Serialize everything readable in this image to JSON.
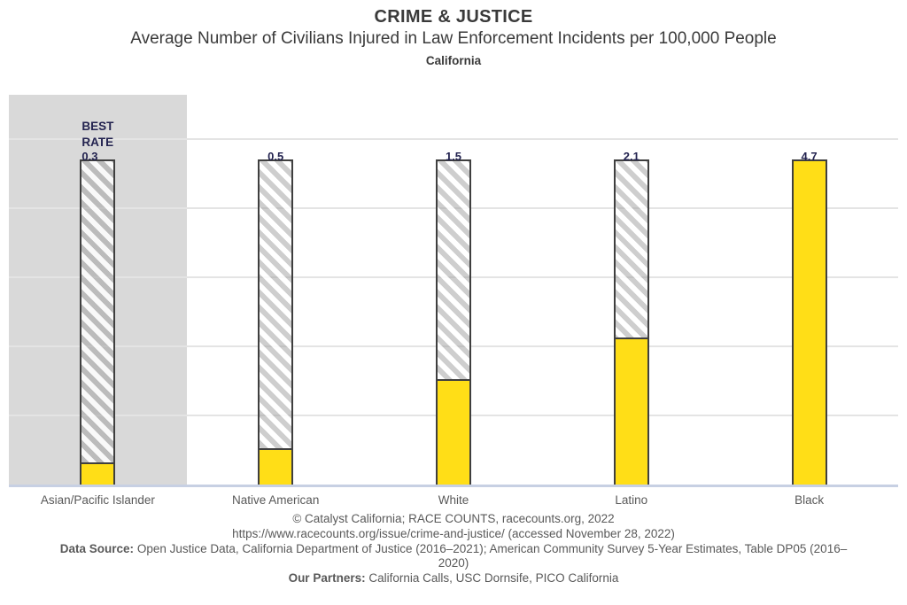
{
  "header": {
    "kicker": "CRIME & JUSTICE",
    "title": "Average Number of Civilians Injured in Law Enforcement Incidents per 100,000 People",
    "region": "California"
  },
  "chart_data": {
    "type": "bar",
    "title": "CRIME & JUSTICE",
    "subtitle": "Average Number of Civilians Injured in Law Enforcement Incidents per 100,000 People",
    "region": "California",
    "categories": [
      "Asian/Pacific Islander",
      "Native American",
      "White",
      "Latino",
      "Black"
    ],
    "values": [
      0.3,
      0.5,
      1.5,
      2.1,
      4.7
    ],
    "value_labels": [
      "0.3",
      "0.5",
      "1.5",
      "2.1",
      "4.7"
    ],
    "bar_top_value": 4.7,
    "ylim": [
      0,
      5.6
    ],
    "gridline_values": [
      1,
      2,
      3,
      4,
      5
    ],
    "grid": "horizontal",
    "legend": "none",
    "annotation": {
      "label": "BEST RATE",
      "applies_to": "Asian/Pacific Islander"
    },
    "highlighted_category_index": 0,
    "colors": {
      "bar_fill": "#FFDE17",
      "bar_border": "#3F3F3F",
      "hatch_stripe": "#BDBDBD",
      "highlight_band": "#D9D9D9",
      "gridline": "#E4E4E4",
      "axis_line": "#C7D0E3",
      "value_label_text": "#232350",
      "axis_label_text": "#595959"
    }
  },
  "footer": {
    "line1": "© Catalyst California; RACE COUNTS, racecounts.org, 2022",
    "line2": "https://www.racecounts.org/issue/crime-and-justice/ (accessed November 28, 2022)",
    "line3_label": "Data Source:",
    "line3_text": " Open Justice Data, California Department of Justice (2016–2021); American Community Survey 5-Year Estimates, Table DP05 (2016–2020)",
    "line4_label": "Our Partners:",
    "line4_text": " California Calls, USC Dornsife, PICO California"
  }
}
